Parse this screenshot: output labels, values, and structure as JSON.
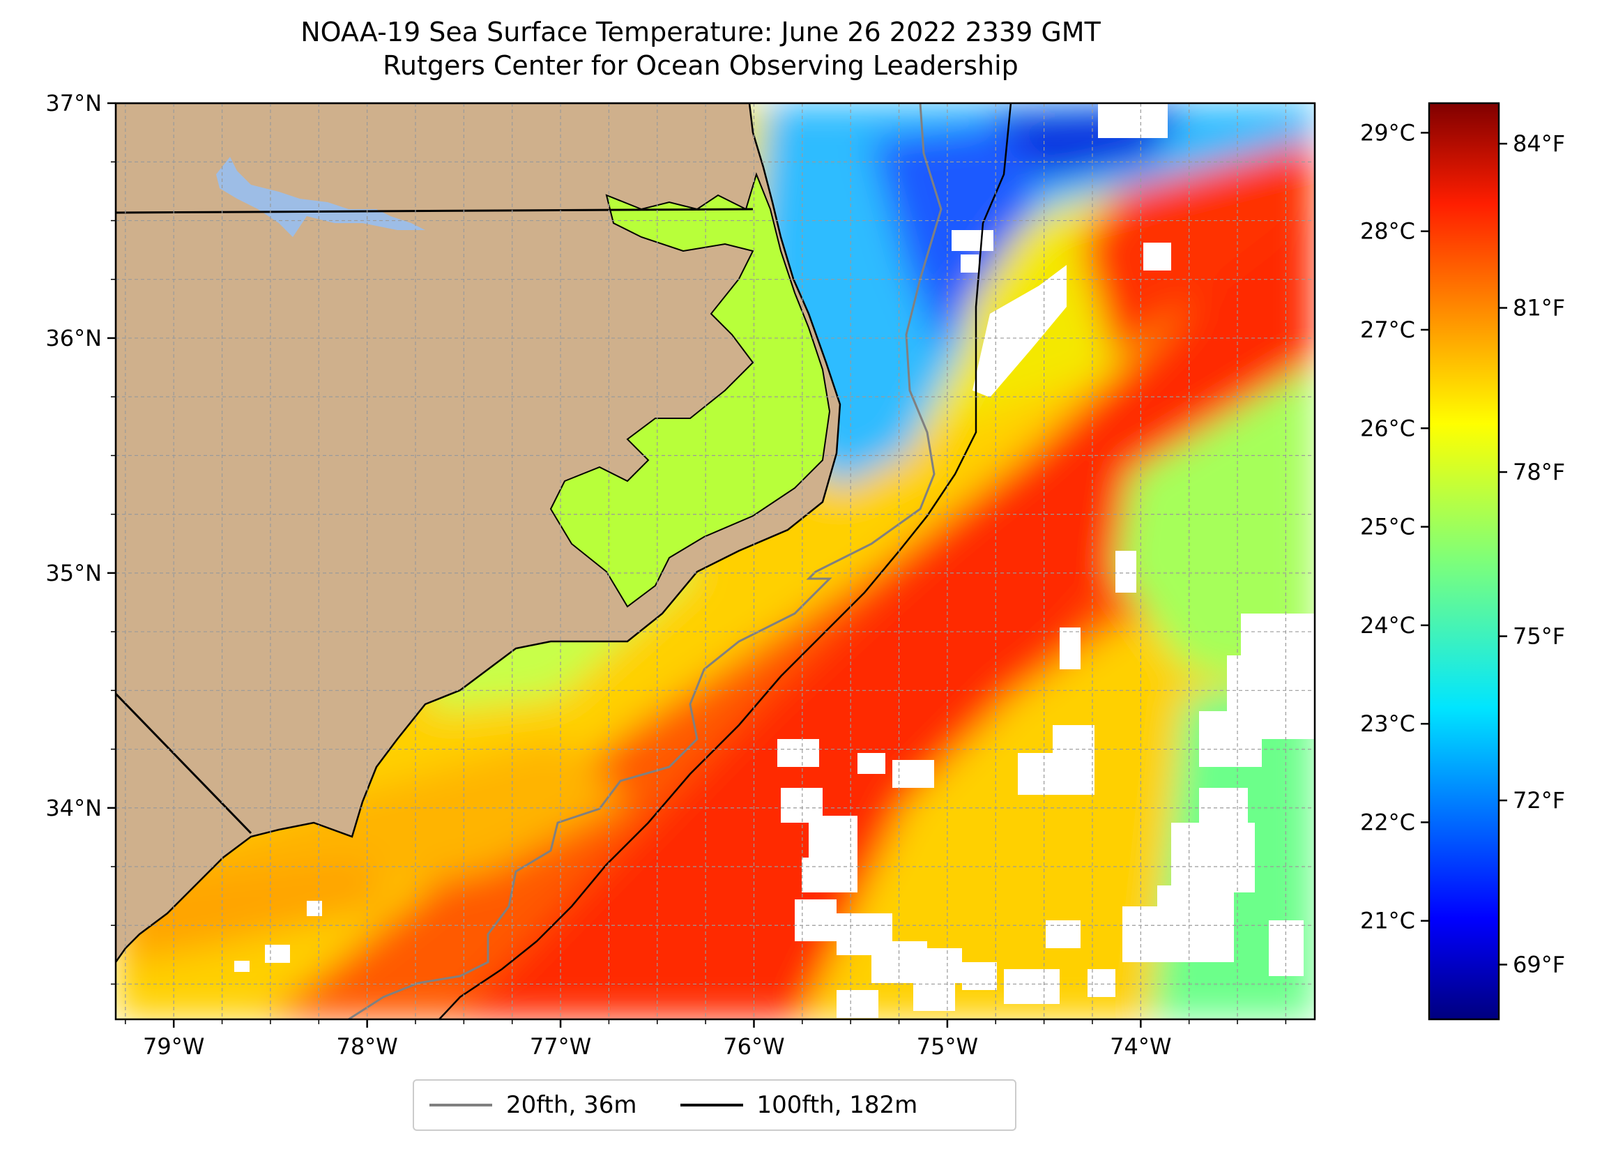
{
  "title": {
    "line1": "NOAA-19 Sea Surface Temperature: June 26 2022 2339 GMT",
    "line2": "Rutgers Center for Ocean Observing Leadership"
  },
  "map": {
    "lon_range": [
      -79.3,
      -73.1
    ],
    "lat_range": [
      33.1,
      37.0
    ],
    "lon_ticks": [
      {
        "value": -79,
        "label": "79°W"
      },
      {
        "value": -78,
        "label": "78°W"
      },
      {
        "value": -77,
        "label": "77°W"
      },
      {
        "value": -76,
        "label": "76°W"
      },
      {
        "value": -75,
        "label": "75°W"
      },
      {
        "value": -74,
        "label": "74°W"
      }
    ],
    "lat_ticks": [
      {
        "value": 37,
        "label": "37°N"
      },
      {
        "value": 36,
        "label": "36°N"
      },
      {
        "value": 35,
        "label": "35°N"
      },
      {
        "value": 34,
        "label": "34°N"
      }
    ],
    "grid": true,
    "land_color": "#cfb08c",
    "lake_color": "#9dbde6"
  },
  "colorbar": {
    "colormap": "jet",
    "range_c": [
      20.0,
      29.3
    ],
    "celsius_ticks": [
      {
        "value": 29,
        "label": "29°C"
      },
      {
        "value": 28,
        "label": "28°C"
      },
      {
        "value": 27,
        "label": "27°C"
      },
      {
        "value": 26,
        "label": "26°C"
      },
      {
        "value": 25,
        "label": "25°C"
      },
      {
        "value": 24,
        "label": "24°C"
      },
      {
        "value": 23,
        "label": "23°C"
      },
      {
        "value": 22,
        "label": "22°C"
      },
      {
        "value": 21,
        "label": "21°C"
      }
    ],
    "fahrenheit_ticks": [
      {
        "value": 84,
        "label": "84°F"
      },
      {
        "value": 81,
        "label": "81°F"
      },
      {
        "value": 78,
        "label": "78°F"
      },
      {
        "value": 75,
        "label": "75°F"
      },
      {
        "value": 72,
        "label": "72°F"
      },
      {
        "value": 69,
        "label": "69°F"
      }
    ]
  },
  "legend": {
    "items": [
      {
        "label": "20fth, 36m",
        "color": "#808080"
      },
      {
        "label": "100fth, 182m",
        "color": "#000000"
      }
    ]
  }
}
